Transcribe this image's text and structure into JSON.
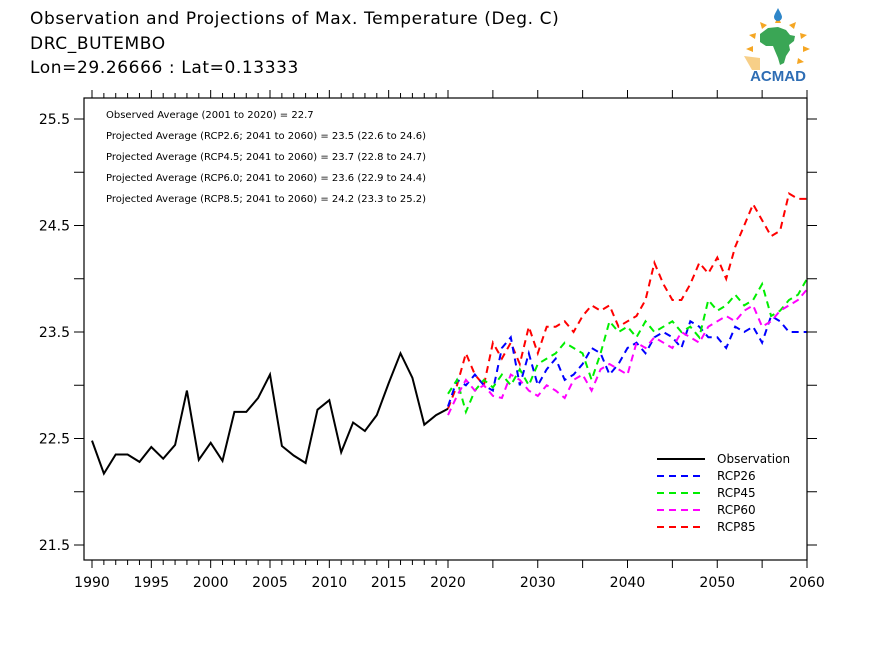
{
  "header": {
    "title": "Observation and Projections of Max. Temperature (Deg. C)",
    "station": "DRC_BUTEMBO",
    "coords": "Lon=29.26666 : Lat=0.13333"
  },
  "logo": {
    "text": "ACMAD",
    "text_color": "#2e6db4",
    "land_color": "#3aa655",
    "sun_color": "#f5a623",
    "drop_color": "#2e86c9"
  },
  "chart_data": {
    "type": "line",
    "title": "Observation and Projections of Max. Temperature (Deg. C)",
    "xlabel": "",
    "ylabel": "",
    "ylim": [
      21.3,
      25.7
    ],
    "xlim": [
      1989.3,
      2060
    ],
    "x_axis_note": "piecewise scale: 1990-2020 wider spacing per year than 2020-2060",
    "yticks": [
      21.5,
      22.5,
      23.5,
      24.5,
      25.5
    ],
    "ytick_labels": [
      "21.5",
      "22.5",
      "23.5",
      "24.5",
      "25.5"
    ],
    "yminor": [
      22.0,
      23.0,
      24.0,
      25.0
    ],
    "xticks_labeled": [
      1990,
      1995,
      2000,
      2005,
      2010,
      2015,
      2020,
      2030,
      2040,
      2050,
      2060
    ],
    "xtick_labels": [
      "1990",
      "1995",
      "2000",
      "2005",
      "2010",
      "2015",
      "2020",
      "2030",
      "2040",
      "2050",
      "2060"
    ],
    "annotations": [
      "Observed Average (2001 to 2020) = 22.7",
      "Projected Average (RCP2.6; 2041 to 2060) = 23.5 (22.6 to 24.6)",
      "Projected Average (RCP4.5; 2041 to 2060) = 23.7 (22.8 to 24.7)",
      "Projected Average (RCP6.0; 2041 to 2060) = 23.6 (22.9 to 24.4)",
      "Projected Average (RCP8.5; 2041 to 2060) = 24.2 (23.3 to 25.2)"
    ],
    "legend_position": "bottom-right",
    "series": [
      {
        "name": "Observation",
        "color": "#000000",
        "dash": "solid",
        "x": [
          1990,
          1991,
          1992,
          1993,
          1994,
          1995,
          1996,
          1997,
          1998,
          1999,
          2000,
          2001,
          2002,
          2003,
          2004,
          2005,
          2006,
          2007,
          2008,
          2009,
          2010,
          2011,
          2012,
          2013,
          2014,
          2015,
          2016,
          2017,
          2018,
          2019,
          2020
        ],
        "values": [
          22.48,
          22.17,
          22.35,
          22.35,
          22.28,
          22.42,
          22.31,
          22.44,
          22.95,
          22.3,
          22.46,
          22.29,
          22.75,
          22.75,
          22.88,
          23.1,
          22.43,
          22.34,
          22.27,
          22.77,
          22.86,
          22.37,
          22.65,
          22.57,
          22.72,
          23.02,
          23.3,
          23.07,
          22.63,
          22.72,
          22.78
        ]
      },
      {
        "name": "RCP26",
        "color": "#0000ff",
        "dash": "dashed",
        "x": [
          2020,
          2021,
          2022,
          2023,
          2024,
          2025,
          2026,
          2027,
          2028,
          2029,
          2030,
          2031,
          2032,
          2033,
          2034,
          2035,
          2036,
          2037,
          2038,
          2039,
          2040,
          2041,
          2042,
          2043,
          2044,
          2045,
          2046,
          2047,
          2048,
          2049,
          2050,
          2051,
          2052,
          2053,
          2054,
          2055,
          2056,
          2057,
          2058,
          2059,
          2060
        ],
        "values": [
          22.8,
          23.05,
          23.0,
          23.1,
          23.0,
          22.95,
          23.35,
          23.45,
          23.0,
          23.3,
          23.0,
          23.15,
          23.25,
          23.05,
          23.1,
          23.2,
          23.35,
          23.3,
          23.1,
          23.2,
          23.35,
          23.4,
          23.3,
          23.45,
          23.5,
          23.45,
          23.35,
          23.6,
          23.55,
          23.45,
          23.45,
          23.35,
          23.55,
          23.5,
          23.55,
          23.4,
          23.65,
          23.6,
          23.5,
          23.5,
          23.5
        ]
      },
      {
        "name": "RCP45",
        "color": "#00ee00",
        "dash": "dashed",
        "x": [
          2020,
          2021,
          2022,
          2023,
          2024,
          2025,
          2026,
          2027,
          2028,
          2029,
          2030,
          2031,
          2032,
          2033,
          2034,
          2035,
          2036,
          2037,
          2038,
          2039,
          2040,
          2041,
          2042,
          2043,
          2044,
          2045,
          2046,
          2047,
          2048,
          2049,
          2050,
          2051,
          2052,
          2053,
          2054,
          2055,
          2056,
          2057,
          2058,
          2059,
          2060
        ],
        "values": [
          22.92,
          23.05,
          22.75,
          22.95,
          23.05,
          22.98,
          23.1,
          23.0,
          23.15,
          23.0,
          23.2,
          23.25,
          23.3,
          23.4,
          23.35,
          23.3,
          23.05,
          23.3,
          23.6,
          23.5,
          23.55,
          23.45,
          23.6,
          23.5,
          23.55,
          23.6,
          23.5,
          23.55,
          23.45,
          23.8,
          23.7,
          23.75,
          23.85,
          23.75,
          23.8,
          23.95,
          23.65,
          23.7,
          23.8,
          23.85,
          24.0
        ]
      },
      {
        "name": "RCP60",
        "color": "#ff00ff",
        "dash": "dashed",
        "x": [
          2020,
          2021,
          2022,
          2023,
          2024,
          2025,
          2026,
          2027,
          2028,
          2029,
          2030,
          2031,
          2032,
          2033,
          2034,
          2035,
          2036,
          2037,
          2038,
          2039,
          2040,
          2041,
          2042,
          2043,
          2044,
          2045,
          2046,
          2047,
          2048,
          2049,
          2050,
          2051,
          2052,
          2053,
          2054,
          2055,
          2056,
          2057,
          2058,
          2059,
          2060
        ],
        "values": [
          22.72,
          22.9,
          23.05,
          22.95,
          23.0,
          22.9,
          22.88,
          23.1,
          23.05,
          22.95,
          22.9,
          23.0,
          22.95,
          22.88,
          23.05,
          23.1,
          22.95,
          23.15,
          23.2,
          23.15,
          23.1,
          23.4,
          23.35,
          23.45,
          23.4,
          23.35,
          23.5,
          23.45,
          23.4,
          23.55,
          23.6,
          23.65,
          23.6,
          23.7,
          23.75,
          23.55,
          23.6,
          23.7,
          23.75,
          23.8,
          23.9
        ]
      },
      {
        "name": "RCP85",
        "color": "#ff0000",
        "dash": "dashed",
        "x": [
          2020,
          2021,
          2022,
          2023,
          2024,
          2025,
          2026,
          2027,
          2028,
          2029,
          2030,
          2031,
          2032,
          2033,
          2034,
          2035,
          2036,
          2037,
          2038,
          2039,
          2040,
          2041,
          2042,
          2043,
          2044,
          2045,
          2046,
          2047,
          2048,
          2049,
          2050,
          2051,
          2052,
          2053,
          2054,
          2055,
          2056,
          2057,
          2058,
          2059,
          2060
        ],
        "values": [
          22.78,
          23.0,
          23.3,
          23.1,
          23.0,
          23.4,
          23.25,
          23.4,
          23.2,
          23.55,
          23.3,
          23.55,
          23.55,
          23.6,
          23.5,
          23.65,
          23.75,
          23.7,
          23.75,
          23.55,
          23.6,
          23.65,
          23.8,
          24.15,
          23.95,
          23.8,
          23.8,
          23.95,
          24.15,
          24.05,
          24.2,
          24.0,
          24.3,
          24.5,
          24.7,
          24.55,
          24.4,
          24.45,
          24.8,
          24.75,
          24.75
        ]
      }
    ]
  }
}
